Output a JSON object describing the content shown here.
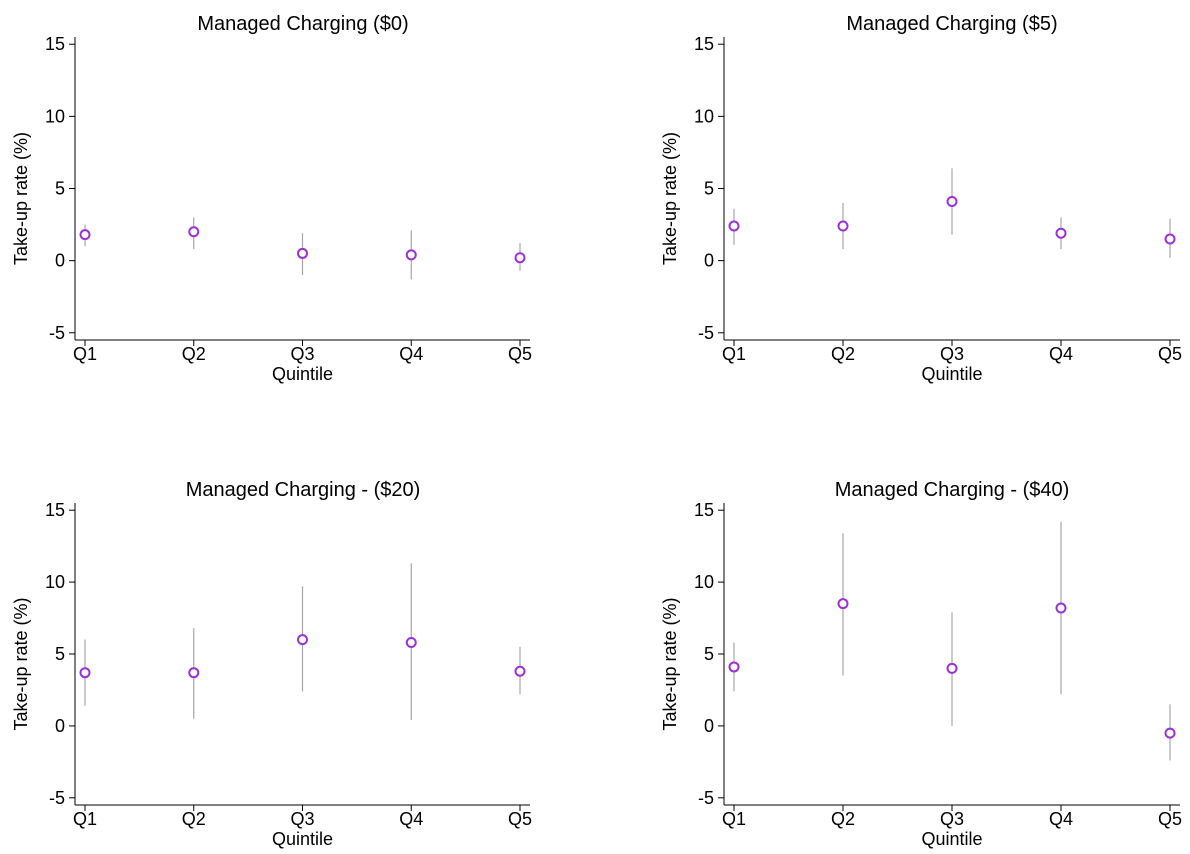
{
  "chart_data": [
    {
      "type": "scatter",
      "title": "Managed Charging ($0)",
      "xlabel": "Quintile",
      "ylabel": "Take-up rate (%)",
      "categories": [
        "Q1",
        "Q2",
        "Q3",
        "Q4",
        "Q5"
      ],
      "values": [
        1.8,
        2.0,
        0.5,
        0.4,
        0.2
      ],
      "ci_low": [
        1.0,
        0.8,
        -1.0,
        -1.3,
        -0.7
      ],
      "ci_high": [
        2.5,
        3.0,
        1.9,
        2.1,
        1.2
      ],
      "ylim": [
        -5.5,
        15.5
      ],
      "yticks": [
        -5,
        0,
        5,
        10,
        15
      ],
      "ytick_labels": [
        "-5",
        "0",
        "5",
        "10",
        "15"
      ],
      "grid": false,
      "marker_color": "#9b30d9",
      "ci_color": "#a6a6a6"
    },
    {
      "type": "scatter",
      "title": "Managed Charging ($5)",
      "xlabel": "Quintile",
      "ylabel": "Take-up rate (%)",
      "categories": [
        "Q1",
        "Q2",
        "Q3",
        "Q4",
        "Q5"
      ],
      "values": [
        2.4,
        2.4,
        4.1,
        1.9,
        1.5
      ],
      "ci_low": [
        1.1,
        0.8,
        1.8,
        0.8,
        0.2
      ],
      "ci_high": [
        3.6,
        4.0,
        6.4,
        3.0,
        2.9
      ],
      "ylim": [
        -5.5,
        15.5
      ],
      "yticks": [
        -5,
        0,
        5,
        10,
        15
      ],
      "ytick_labels": [
        "-5",
        "0",
        "5",
        "10",
        "15"
      ],
      "grid": false,
      "marker_color": "#9b30d9",
      "ci_color": "#a6a6a6"
    },
    {
      "type": "scatter",
      "title": "Managed Charging - ($20)",
      "xlabel": "Quintile",
      "ylabel": "Take-up rate (%)",
      "categories": [
        "Q1",
        "Q2",
        "Q3",
        "Q4",
        "Q5"
      ],
      "values": [
        3.7,
        3.7,
        6.0,
        5.8,
        3.8
      ],
      "ci_low": [
        1.4,
        0.5,
        2.4,
        0.4,
        2.2
      ],
      "ci_high": [
        6.0,
        6.8,
        9.7,
        11.3,
        5.5
      ],
      "ylim": [
        -5.5,
        15.5
      ],
      "yticks": [
        -5,
        0,
        5,
        10,
        15
      ],
      "ytick_labels": [
        "-5",
        "0",
        "5",
        "10",
        "15"
      ],
      "grid": false,
      "marker_color": "#9b30d9",
      "ci_color": "#a6a6a6"
    },
    {
      "type": "scatter",
      "title": "Managed Charging - ($40)",
      "xlabel": "Quintile",
      "ylabel": "Take-up rate (%)",
      "categories": [
        "Q1",
        "Q2",
        "Q3",
        "Q4",
        "Q5"
      ],
      "values": [
        4.1,
        8.5,
        4.0,
        8.2,
        -0.5
      ],
      "ci_low": [
        2.4,
        3.5,
        0.0,
        2.2,
        -2.4
      ],
      "ci_high": [
        5.8,
        13.4,
        7.9,
        14.2,
        1.5
      ],
      "ylim": [
        -5.5,
        15.5
      ],
      "yticks": [
        -5,
        0,
        5,
        10,
        15
      ],
      "ytick_labels": [
        "-5",
        "0",
        "5",
        "10",
        "15"
      ],
      "grid": false,
      "marker_color": "#9b30d9",
      "ci_color": "#a6a6a6"
    }
  ]
}
